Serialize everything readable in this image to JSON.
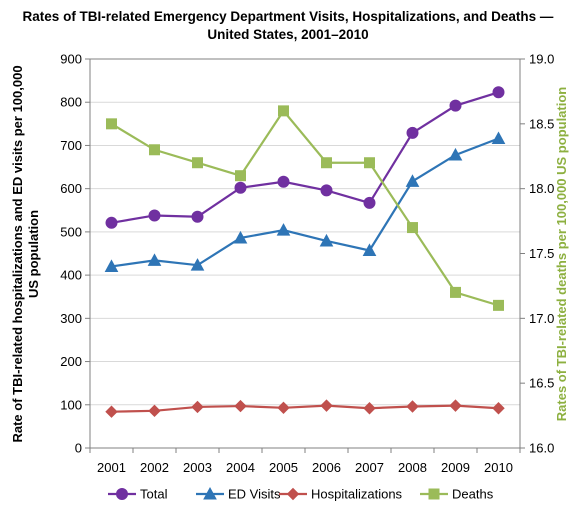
{
  "chart_data": {
    "type": "line",
    "title_line1": "Rates of TBI-related Emergency Department Visits, Hospitalizations, and Deaths —",
    "title_line2": "United States, 2001–2010",
    "ylabel_left_line1": "Rate of TBI-related hospitalizations and ED visits per 100,000",
    "ylabel_left_line2": "US population",
    "ylabel_right": "Rates of TBI-related deaths per 100,000 US population",
    "categories": [
      "2001",
      "2002",
      "2003",
      "2004",
      "2005",
      "2006",
      "2007",
      "2008",
      "2009",
      "2010"
    ],
    "y_left": {
      "min": 0,
      "max": 900,
      "step": 100,
      "ticks": [
        "0",
        "100",
        "200",
        "300",
        "400",
        "500",
        "600",
        "700",
        "800",
        "900"
      ]
    },
    "y_right": {
      "min": 16.0,
      "max": 19.0,
      "step": 0.5,
      "ticks": [
        "16.0",
        "16.5",
        "17.0",
        "17.5",
        "18.0",
        "18.5",
        "19.0"
      ]
    },
    "grid": "horizontal",
    "legend_position": "bottom",
    "series": [
      {
        "name": "Total",
        "axis": "left",
        "color": "#7030a0",
        "marker": "circle",
        "values": [
          521,
          538,
          535,
          602,
          616,
          596,
          567,
          729,
          792,
          823
        ]
      },
      {
        "name": "ED Visits",
        "axis": "left",
        "color": "#2e75b6",
        "marker": "triangle",
        "values": [
          420,
          434,
          423,
          486,
          504,
          479,
          457,
          617,
          678,
          716
        ]
      },
      {
        "name": "Hospitalizations",
        "axis": "left",
        "color": "#c0504d",
        "marker": "diamond",
        "values": [
          84,
          86,
          95,
          97,
          93,
          98,
          92,
          96,
          98,
          92
        ]
      },
      {
        "name": "Deaths",
        "axis": "right",
        "color": "#9bbb59",
        "marker": "square",
        "values": [
          18.5,
          18.3,
          18.2,
          18.1,
          18.6,
          18.2,
          18.2,
          17.7,
          17.2,
          17.1
        ]
      }
    ]
  }
}
